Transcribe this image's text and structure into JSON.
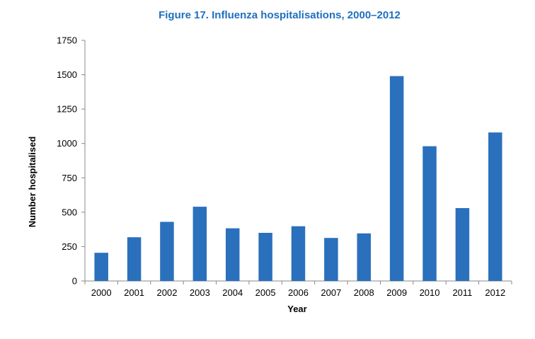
{
  "chart_data": {
    "type": "bar",
    "title": "Figure 17. Influenza hospitalisations, 2000–2012",
    "xlabel": "Year",
    "ylabel": "Number hospitalised",
    "categories": [
      "2000",
      "2001",
      "2002",
      "2003",
      "2004",
      "2005",
      "2006",
      "2007",
      "2008",
      "2009",
      "2010",
      "2011",
      "2012"
    ],
    "values": [
      205,
      318,
      430,
      540,
      383,
      350,
      398,
      313,
      346,
      1490,
      980,
      530,
      1080
    ],
    "ylim": [
      0,
      1750
    ],
    "yticks": [
      0,
      250,
      500,
      750,
      1000,
      1250,
      1500,
      1750
    ],
    "grid": false,
    "legend": "none",
    "bar_color": "#2a70bc",
    "title_color": "#1f6fbe"
  }
}
